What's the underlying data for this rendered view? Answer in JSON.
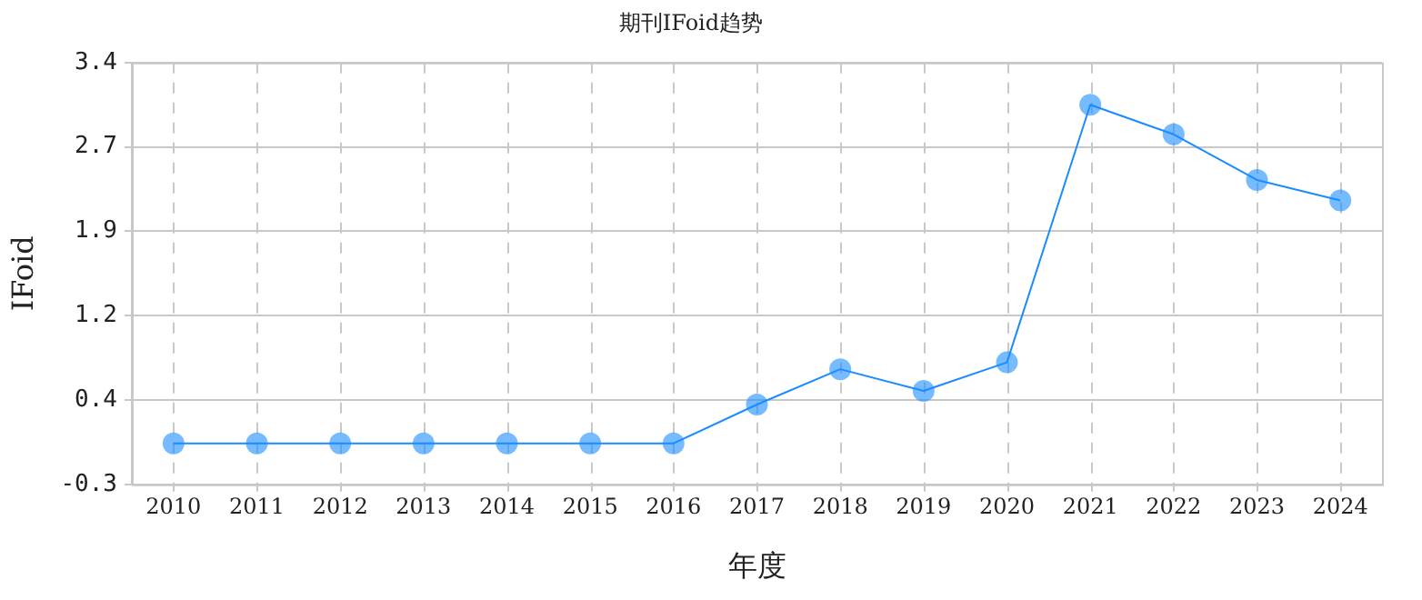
{
  "chart_data": {
    "type": "line",
    "title": "期刊IFoid趋势",
    "xlabel": "年度",
    "ylabel": "IFoid",
    "categories": [
      "2010",
      "2011",
      "2012",
      "2013",
      "2014",
      "2015",
      "2016",
      "2017",
      "2018",
      "2019",
      "2020",
      "2021",
      "2022",
      "2023",
      "2024"
    ],
    "series": [
      {
        "color": "#1a8cff",
        "values": [
          0.06,
          0.06,
          0.06,
          0.06,
          0.06,
          0.06,
          0.06,
          0.4,
          0.71,
          0.52,
          0.77,
          3.03,
          2.77,
          2.37,
          2.19
        ]
      }
    ],
    "ylim": [
      -0.3,
      3.4
    ],
    "yticks": [
      -0.3,
      {
        "value": 0.44,
        "label": "0.4"
      },
      {
        "value": 1.18,
        "label": "1.2"
      },
      {
        "value": 1.92,
        "label": "1.9"
      },
      {
        "value": 2.66,
        "label": "2.7"
      },
      3.4
    ],
    "grid": true,
    "marker": "circle",
    "line_style": "solid"
  }
}
